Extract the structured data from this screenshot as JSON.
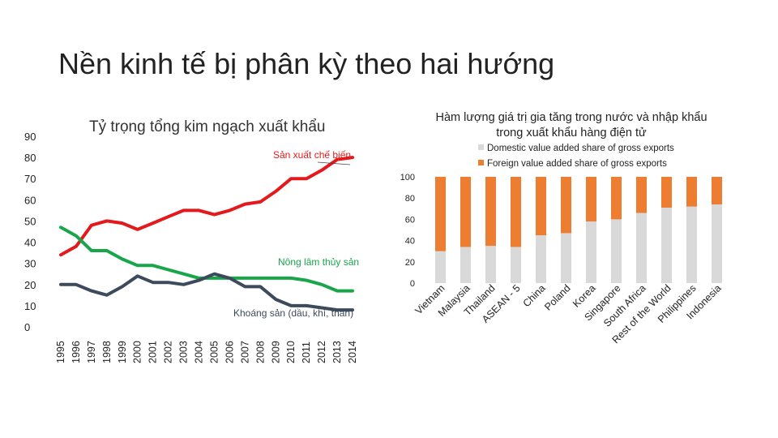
{
  "slide": {
    "title": "Nền kinh tế bị phân kỳ theo hai hướng"
  },
  "chart_data": [
    {
      "type": "line",
      "title": "Tỷ trọng tổng kim ngạch xuất khẩu",
      "x": [
        "1995",
        "1996",
        "1997",
        "1998",
        "1999",
        "2000",
        "2001",
        "2002",
        "2003",
        "2004",
        "2005",
        "2006",
        "2007",
        "2008",
        "2009",
        "2010",
        "2011",
        "2012",
        "2013",
        "2014"
      ],
      "ylim": [
        0,
        90
      ],
      "yticks": [
        0,
        10,
        20,
        30,
        40,
        50,
        60,
        70,
        80,
        90
      ],
      "grid": false,
      "series": [
        {
          "name": "Sản xuất chế biến",
          "color": "#e4191c",
          "values": [
            34,
            38,
            48,
            50,
            49,
            46,
            49,
            52,
            55,
            55,
            53,
            55,
            58,
            59,
            64,
            70,
            70,
            74,
            79,
            80
          ]
        },
        {
          "name": "Nông lâm thủy sản",
          "color": "#19a64a",
          "values": [
            47,
            43,
            36,
            36,
            32,
            29,
            29,
            27,
            25,
            23,
            23,
            23,
            23,
            23,
            23,
            23,
            22,
            20,
            17,
            17
          ]
        },
        {
          "name": "Khoáng sản (dầu, khí, than)",
          "color": "#3d4a5c",
          "values": [
            20,
            20,
            17,
            15,
            19,
            24,
            21,
            21,
            20,
            22,
            25,
            23,
            19,
            19,
            13,
            10,
            10,
            9,
            8,
            8
          ]
        }
      ]
    },
    {
      "type": "bar",
      "title": "Hàm lượng giá trị gia tăng trong nước và nhập khẩu trong xuất khẩu hàng điện tử",
      "categories": [
        "Vietnam",
        "Malaysia",
        "Thailand",
        "ASEAN - 5",
        "China",
        "Poland",
        "Korea",
        "Singapore",
        "South Africa",
        "Rest of the World",
        "Philippines",
        "Indonesia"
      ],
      "ylim": [
        0,
        100
      ],
      "yticks": [
        0,
        20,
        40,
        60,
        80,
        100
      ],
      "legend_position": "top",
      "series": [
        {
          "name": "Domestic value added share of gross exports",
          "color": "#d9d9d9",
          "values": [
            30,
            34,
            35,
            34,
            45,
            47,
            58,
            60,
            66,
            71,
            72,
            74
          ]
        },
        {
          "name": "Foreign value added share of gross exports",
          "color": "#ed7d31",
          "values": [
            70,
            66,
            65,
            66,
            55,
            53,
            42,
            40,
            34,
            29,
            28,
            26
          ]
        }
      ]
    }
  ]
}
